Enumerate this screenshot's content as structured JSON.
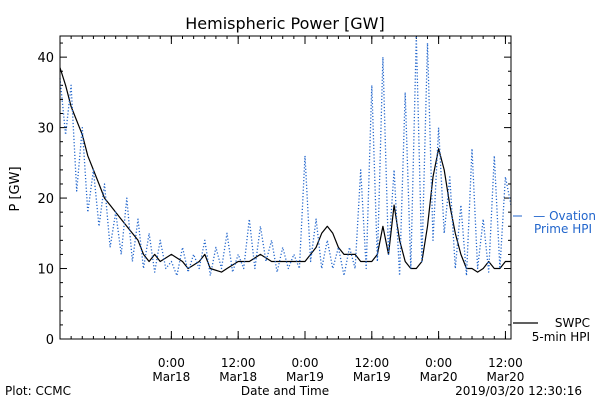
{
  "chart_data": {
    "type": "line",
    "title": "Hemispheric Power [GW]",
    "xlabel": "Date and Time",
    "ylabel": "P [GW]",
    "ylim": [
      0,
      43
    ],
    "yticks": [
      0,
      10,
      20,
      30,
      40
    ],
    "xlim": [
      "2019-03-17T04:00",
      "2019-03-20T13:00"
    ],
    "xticks": [
      {
        "t": "2019-03-18T00:00",
        "time": "0:00",
        "date": "Mar18"
      },
      {
        "t": "2019-03-18T12:00",
        "time": "12:00",
        "date": "Mar18"
      },
      {
        "t": "2019-03-19T00:00",
        "time": "0:00",
        "date": "Mar19"
      },
      {
        "t": "2019-03-19T12:00",
        "time": "12:00",
        "date": "Mar19"
      },
      {
        "t": "2019-03-20T00:00",
        "time": "0:00",
        "date": "Mar20"
      },
      {
        "t": "2019-03-20T12:00",
        "time": "12:00",
        "date": "Mar20"
      }
    ],
    "legend": [
      {
        "name_lines": [
          "— Ovation",
          "Prime HPI"
        ],
        "color": "#2266cc",
        "style": "dotted",
        "placement": "right-middle"
      },
      {
        "name_lines": [
          "SWPC",
          "5-min HPI"
        ],
        "color": "#000000",
        "style": "solid",
        "placement": "right-bottom"
      }
    ],
    "series": [
      {
        "name": "SWPC 5-min HPI",
        "color": "#000000",
        "style": "solid",
        "points": [
          [
            "2019-03-17T04:00",
            38.5
          ],
          [
            "2019-03-17T05:00",
            36
          ],
          [
            "2019-03-17T06:00",
            33
          ],
          [
            "2019-03-17T07:00",
            31
          ],
          [
            "2019-03-17T08:00",
            29
          ],
          [
            "2019-03-17T09:00",
            26
          ],
          [
            "2019-03-17T10:00",
            24
          ],
          [
            "2019-03-17T11:00",
            22
          ],
          [
            "2019-03-17T12:00",
            20
          ],
          [
            "2019-03-17T13:00",
            19
          ],
          [
            "2019-03-17T14:00",
            18
          ],
          [
            "2019-03-17T15:00",
            17
          ],
          [
            "2019-03-17T16:00",
            16
          ],
          [
            "2019-03-17T17:00",
            15
          ],
          [
            "2019-03-17T18:00",
            14
          ],
          [
            "2019-03-17T19:00",
            12
          ],
          [
            "2019-03-17T20:00",
            11
          ],
          [
            "2019-03-17T21:00",
            12
          ],
          [
            "2019-03-17T22:00",
            11
          ],
          [
            "2019-03-18T00:00",
            12
          ],
          [
            "2019-03-18T02:00",
            11
          ],
          [
            "2019-03-18T03:00",
            10
          ],
          [
            "2019-03-18T05:00",
            11
          ],
          [
            "2019-03-18T06:00",
            12
          ],
          [
            "2019-03-18T07:00",
            10
          ],
          [
            "2019-03-18T09:00",
            9.5
          ],
          [
            "2019-03-18T10:00",
            10
          ],
          [
            "2019-03-18T12:00",
            11
          ],
          [
            "2019-03-18T14:00",
            11
          ],
          [
            "2019-03-18T16:00",
            12
          ],
          [
            "2019-03-18T18:00",
            11
          ],
          [
            "2019-03-18T20:00",
            11
          ],
          [
            "2019-03-18T22:00",
            11
          ],
          [
            "2019-03-19T00:00",
            11
          ],
          [
            "2019-03-19T01:00",
            12
          ],
          [
            "2019-03-19T02:00",
            13
          ],
          [
            "2019-03-19T03:00",
            15
          ],
          [
            "2019-03-19T04:00",
            16
          ],
          [
            "2019-03-19T05:00",
            15
          ],
          [
            "2019-03-19T06:00",
            13
          ],
          [
            "2019-03-19T07:00",
            12
          ],
          [
            "2019-03-19T08:00",
            12
          ],
          [
            "2019-03-19T09:00",
            12
          ],
          [
            "2019-03-19T10:00",
            11
          ],
          [
            "2019-03-19T11:00",
            11
          ],
          [
            "2019-03-19T12:00",
            11
          ],
          [
            "2019-03-19T13:00",
            12
          ],
          [
            "2019-03-19T14:00",
            16
          ],
          [
            "2019-03-19T15:00",
            12
          ],
          [
            "2019-03-19T16:00",
            19
          ],
          [
            "2019-03-19T17:00",
            14
          ],
          [
            "2019-03-19T18:00",
            11
          ],
          [
            "2019-03-19T19:00",
            10
          ],
          [
            "2019-03-19T20:00",
            10
          ],
          [
            "2019-03-19T21:00",
            11
          ],
          [
            "2019-03-19T22:00",
            16
          ],
          [
            "2019-03-19T23:00",
            23
          ],
          [
            "2019-03-20T00:00",
            27
          ],
          [
            "2019-03-20T01:00",
            24
          ],
          [
            "2019-03-20T02:00",
            19
          ],
          [
            "2019-03-20T03:00",
            15
          ],
          [
            "2019-03-20T04:00",
            12
          ],
          [
            "2019-03-20T05:00",
            10
          ],
          [
            "2019-03-20T06:00",
            10
          ],
          [
            "2019-03-20T07:00",
            9.5
          ],
          [
            "2019-03-20T08:00",
            10
          ],
          [
            "2019-03-20T09:00",
            11
          ],
          [
            "2019-03-20T10:00",
            10
          ],
          [
            "2019-03-20T11:00",
            10
          ],
          [
            "2019-03-20T12:00",
            11
          ],
          [
            "2019-03-20T13:00",
            11
          ]
        ]
      },
      {
        "name": "Ovation Prime HPI",
        "color": "#2266cc",
        "style": "dotted",
        "points": [
          [
            "2019-03-17T04:00",
            37
          ],
          [
            "2019-03-17T05:00",
            29
          ],
          [
            "2019-03-17T06:00",
            36
          ],
          [
            "2019-03-17T07:00",
            21
          ],
          [
            "2019-03-17T08:00",
            30
          ],
          [
            "2019-03-17T09:00",
            18
          ],
          [
            "2019-03-17T10:00",
            24
          ],
          [
            "2019-03-17T11:00",
            16
          ],
          [
            "2019-03-17T12:00",
            22
          ],
          [
            "2019-03-17T13:00",
            13
          ],
          [
            "2019-03-17T14:00",
            18
          ],
          [
            "2019-03-17T15:00",
            12
          ],
          [
            "2019-03-17T16:00",
            20
          ],
          [
            "2019-03-17T17:00",
            11
          ],
          [
            "2019-03-17T18:00",
            17
          ],
          [
            "2019-03-17T19:00",
            10
          ],
          [
            "2019-03-17T20:00",
            15
          ],
          [
            "2019-03-17T21:00",
            9.5
          ],
          [
            "2019-03-17T22:00",
            14
          ],
          [
            "2019-03-17T23:00",
            10
          ],
          [
            "2019-03-18T00:00",
            11
          ],
          [
            "2019-03-18T01:00",
            9
          ],
          [
            "2019-03-18T02:00",
            13
          ],
          [
            "2019-03-18T03:00",
            9.5
          ],
          [
            "2019-03-18T04:00",
            12
          ],
          [
            "2019-03-18T05:00",
            10
          ],
          [
            "2019-03-18T06:00",
            14
          ],
          [
            "2019-03-18T07:00",
            9
          ],
          [
            "2019-03-18T08:00",
            13
          ],
          [
            "2019-03-18T09:00",
            10
          ],
          [
            "2019-03-18T10:00",
            15
          ],
          [
            "2019-03-18T11:00",
            9.5
          ],
          [
            "2019-03-18T12:00",
            12
          ],
          [
            "2019-03-18T13:00",
            10
          ],
          [
            "2019-03-18T14:00",
            17
          ],
          [
            "2019-03-18T15:00",
            10
          ],
          [
            "2019-03-18T16:00",
            16
          ],
          [
            "2019-03-18T17:00",
            11
          ],
          [
            "2019-03-18T18:00",
            14
          ],
          [
            "2019-03-18T19:00",
            9.5
          ],
          [
            "2019-03-18T20:00",
            13
          ],
          [
            "2019-03-18T21:00",
            10
          ],
          [
            "2019-03-18T22:00",
            12
          ],
          [
            "2019-03-18T23:00",
            10
          ],
          [
            "2019-03-19T00:00",
            26
          ],
          [
            "2019-03-19T01:00",
            11
          ],
          [
            "2019-03-19T02:00",
            17
          ],
          [
            "2019-03-19T03:00",
            10
          ],
          [
            "2019-03-19T04:00",
            14
          ],
          [
            "2019-03-19T05:00",
            10
          ],
          [
            "2019-03-19T06:00",
            13
          ],
          [
            "2019-03-19T07:00",
            9
          ],
          [
            "2019-03-19T08:00",
            13
          ],
          [
            "2019-03-19T09:00",
            10
          ],
          [
            "2019-03-19T10:00",
            24
          ],
          [
            "2019-03-19T11:00",
            10
          ],
          [
            "2019-03-19T12:00",
            36
          ],
          [
            "2019-03-19T13:00",
            11
          ],
          [
            "2019-03-19T14:00",
            40
          ],
          [
            "2019-03-19T15:00",
            12
          ],
          [
            "2019-03-19T16:00",
            24
          ],
          [
            "2019-03-19T17:00",
            9
          ],
          [
            "2019-03-19T18:00",
            35
          ],
          [
            "2019-03-19T19:00",
            10
          ],
          [
            "2019-03-19T20:00",
            43
          ],
          [
            "2019-03-19T21:00",
            11
          ],
          [
            "2019-03-19T22:00",
            42
          ],
          [
            "2019-03-19T23:00",
            14
          ],
          [
            "2019-03-20T00:00",
            30
          ],
          [
            "2019-03-20T01:00",
            15
          ],
          [
            "2019-03-20T02:00",
            23
          ],
          [
            "2019-03-20T03:00",
            10
          ],
          [
            "2019-03-20T04:00",
            19
          ],
          [
            "2019-03-20T05:00",
            9
          ],
          [
            "2019-03-20T06:00",
            27
          ],
          [
            "2019-03-20T07:00",
            10
          ],
          [
            "2019-03-20T08:00",
            17
          ],
          [
            "2019-03-20T09:00",
            9.5
          ],
          [
            "2019-03-20T10:00",
            26
          ],
          [
            "2019-03-20T11:00",
            10
          ],
          [
            "2019-03-20T12:00",
            23
          ],
          [
            "2019-03-20T13:00",
            19
          ]
        ]
      }
    ]
  },
  "footer": {
    "plot_credit": "Plot: CCMC",
    "timestamp": "2019/03/20 12:30:16"
  }
}
